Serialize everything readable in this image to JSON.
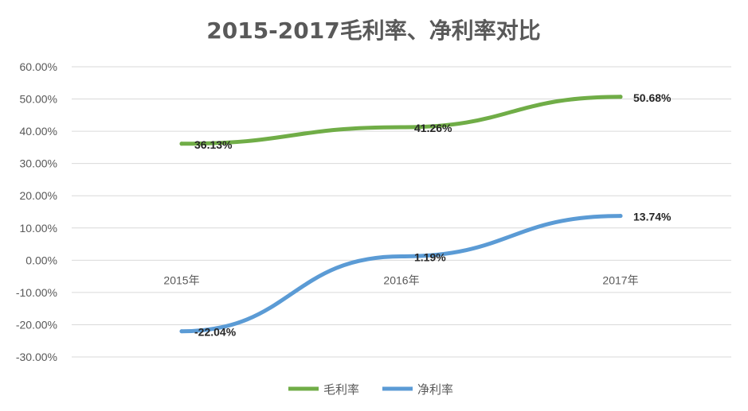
{
  "chart_data": {
    "type": "line",
    "title": "2015-2017毛利率、净利率对比",
    "xlabel": "",
    "ylabel": "",
    "categories": [
      "2015年",
      "2016年",
      "2017年"
    ],
    "y_ticks": [
      "60.00%",
      "50.00%",
      "40.00%",
      "30.00%",
      "20.00%",
      "10.00%",
      "0.00%",
      "-10.00%",
      "-20.00%",
      "-30.00%"
    ],
    "ylim": [
      -30,
      60
    ],
    "grid": true,
    "legend_position": "bottom",
    "series": [
      {
        "name": "毛利率",
        "color": "#70ad47",
        "values": [
          36.13,
          41.26,
          50.68
        ],
        "labels": [
          "36.13%",
          "41.26%",
          "50.68%"
        ]
      },
      {
        "name": "净利率",
        "color": "#5b9bd5",
        "values": [
          -22.04,
          1.19,
          13.74
        ],
        "labels": [
          "-22.04%",
          "1.19%",
          "13.74%"
        ]
      }
    ]
  }
}
